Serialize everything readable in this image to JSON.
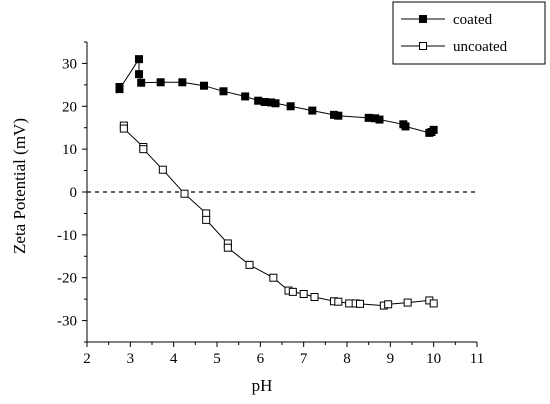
{
  "chart_data": {
    "type": "scatter",
    "xlabel": "pH",
    "ylabel": "Zeta Potential (mV)",
    "xlim": [
      2,
      11
    ],
    "ylim": [
      -35,
      35
    ],
    "x_ticks": [
      "2",
      "3",
      "4",
      "5",
      "6",
      "7",
      "8",
      "9",
      "10",
      "11"
    ],
    "y_ticks": [
      "-30",
      "-20",
      "-10",
      "0",
      "10",
      "20",
      "30"
    ],
    "reference_line": {
      "y": 0,
      "style": "dashed"
    },
    "legend_position": "top-right",
    "series": [
      {
        "name": "coated",
        "marker": "filled-square",
        "color": "#000000",
        "x": [
          2.75,
          2.75,
          3.2,
          3.2,
          3.25,
          3.7,
          4.2,
          4.7,
          5.15,
          5.65,
          5.95,
          6.1,
          6.25,
          6.35,
          6.7,
          7.2,
          7.7,
          7.8,
          8.5,
          8.65,
          8.75,
          9.3,
          9.35,
          9.9,
          9.95,
          10.0
        ],
        "y": [
          24.5,
          24,
          31,
          27.5,
          25.5,
          25.6,
          25.6,
          24.8,
          23.5,
          22.3,
          21.3,
          21,
          20.9,
          20.7,
          20,
          19,
          18,
          17.8,
          17.3,
          17.2,
          16.9,
          15.8,
          15.3,
          13.8,
          14,
          14.5
        ]
      },
      {
        "name": "uncoated",
        "marker": "open-square",
        "color": "#000000",
        "x": [
          2.85,
          2.85,
          3.3,
          3.3,
          3.75,
          4.25,
          4.75,
          4.75,
          5.25,
          5.25,
          5.75,
          6.3,
          6.65,
          6.75,
          7.0,
          7.25,
          7.7,
          7.8,
          8.05,
          8.2,
          8.3,
          8.85,
          8.95,
          9.4,
          9.9,
          10.0
        ],
        "y": [
          15.5,
          14.8,
          10.5,
          10,
          5.2,
          -0.4,
          -5,
          -6.5,
          -12,
          -13,
          -17,
          -20,
          -23,
          -23.3,
          -23.8,
          -24.5,
          -25.5,
          -25.6,
          -26,
          -26,
          -26.1,
          -26.5,
          -26.2,
          -25.8,
          -25.3,
          -26
        ]
      }
    ]
  }
}
